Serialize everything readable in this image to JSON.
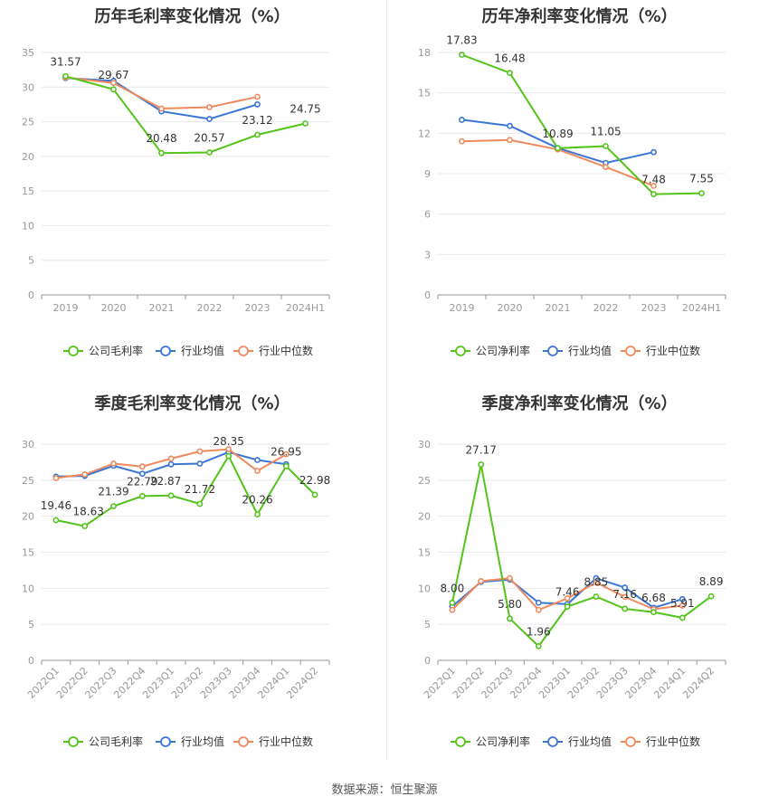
{
  "charts": [
    {
      "title": "历年毛利率变化情况（%）",
      "chart_data": {
        "type": "line",
        "categories": [
          "2019",
          "2020",
          "2021",
          "2022",
          "2023",
          "2024H1"
        ],
        "ylim": [
          0,
          35
        ],
        "yticks": [
          0,
          5,
          10,
          15,
          20,
          25,
          30,
          35
        ],
        "series": [
          {
            "name": "公司毛利率",
            "color": "#52c41a",
            "values": [
              31.57,
              29.67,
              20.48,
              20.57,
              23.12,
              24.75
            ]
          },
          {
            "name": "行业均值",
            "color": "#3a76d6",
            "values": [
              31.3,
              30.9,
              26.5,
              25.4,
              27.5,
              null
            ]
          },
          {
            "name": "行业中位数",
            "color": "#f08a5d",
            "values": [
              31.4,
              30.6,
              26.9,
              27.1,
              28.6,
              null
            ]
          }
        ],
        "labels": [
          "31.57",
          "29.67",
          "20.48",
          "20.57",
          "23.12",
          "24.75"
        ],
        "legend": "bottom"
      }
    },
    {
      "title": "历年净利率变化情况（%）",
      "chart_data": {
        "type": "line",
        "categories": [
          "2019",
          "2020",
          "2021",
          "2022",
          "2023",
          "2024H1"
        ],
        "ylim": [
          0,
          18
        ],
        "yticks": [
          0,
          3,
          6,
          9,
          12,
          15,
          18
        ],
        "series": [
          {
            "name": "公司净利率",
            "color": "#52c41a",
            "values": [
              17.83,
              16.48,
              10.89,
              11.05,
              7.48,
              7.55
            ]
          },
          {
            "name": "行业均值",
            "color": "#3a76d6",
            "values": [
              13.0,
              12.55,
              10.9,
              9.8,
              10.6,
              null
            ]
          },
          {
            "name": "行业中位数",
            "color": "#f08a5d",
            "values": [
              11.4,
              11.5,
              10.8,
              9.5,
              8.1,
              null
            ]
          }
        ],
        "labels": [
          "17.83",
          "16.48",
          "10.89",
          "11.05",
          "7.48",
          "7.55"
        ],
        "legend": "bottom"
      }
    },
    {
      "title": "季度毛利率变化情况（%）",
      "chart_data": {
        "type": "line",
        "categories": [
          "2022Q1",
          "2022Q2",
          "2022Q3",
          "2022Q4",
          "2023Q1",
          "2023Q2",
          "2023Q3",
          "2023Q4",
          "2024Q1",
          "2024Q2"
        ],
        "ylim": [
          0,
          30
        ],
        "yticks": [
          0,
          5,
          10,
          15,
          20,
          25,
          30
        ],
        "series": [
          {
            "name": "公司毛利率",
            "color": "#52c41a",
            "values": [
              19.46,
              18.63,
              21.39,
              22.79,
              22.87,
              21.72,
              28.35,
              20.26,
              26.95,
              22.98
            ]
          },
          {
            "name": "行业均值",
            "color": "#3a76d6",
            "values": [
              25.5,
              25.6,
              27.0,
              25.9,
              27.2,
              27.3,
              28.9,
              27.8,
              27.2,
              null
            ]
          },
          {
            "name": "行业中位数",
            "color": "#f08a5d",
            "values": [
              25.3,
              25.8,
              27.3,
              26.9,
              28.0,
              29.0,
              29.3,
              26.3,
              28.6,
              null
            ]
          }
        ],
        "labels": [
          "19.46",
          "18.63",
          "21.39",
          "22.79",
          "22.87",
          "21.72",
          "28.35",
          "20.26",
          "26.95",
          "22.98"
        ],
        "legend": "bottom"
      }
    },
    {
      "title": "季度净利率变化情况（%）",
      "chart_data": {
        "type": "line",
        "categories": [
          "2022Q1",
          "2022Q2",
          "2022Q3",
          "2022Q4",
          "2023Q1",
          "2023Q2",
          "2023Q3",
          "2023Q4",
          "2024Q1",
          "2024Q2"
        ],
        "ylim": [
          0,
          30
        ],
        "yticks": [
          0,
          5,
          10,
          15,
          20,
          25,
          30
        ],
        "series": [
          {
            "name": "公司净利率",
            "color": "#52c41a",
            "values": [
              8.0,
              27.17,
              5.8,
              1.96,
              7.46,
              8.85,
              7.16,
              6.68,
              5.91,
              8.89
            ]
          },
          {
            "name": "行业均值",
            "color": "#3a76d6",
            "values": [
              7.5,
              10.9,
              11.2,
              8.0,
              7.8,
              11.4,
              10.1,
              7.3,
              8.5,
              null
            ]
          },
          {
            "name": "行业中位数",
            "color": "#f08a5d",
            "values": [
              7.0,
              11.0,
              11.4,
              7.0,
              8.6,
              10.8,
              8.8,
              7.1,
              7.6,
              null
            ]
          }
        ],
        "labels": [
          "8.00",
          "27.17",
          "5.80",
          "1.96",
          "7.46",
          "8.85",
          "7.16",
          "6.68",
          "5.91",
          "8.89"
        ],
        "legend": "bottom"
      }
    }
  ],
  "source": "数据来源：恒生聚源"
}
